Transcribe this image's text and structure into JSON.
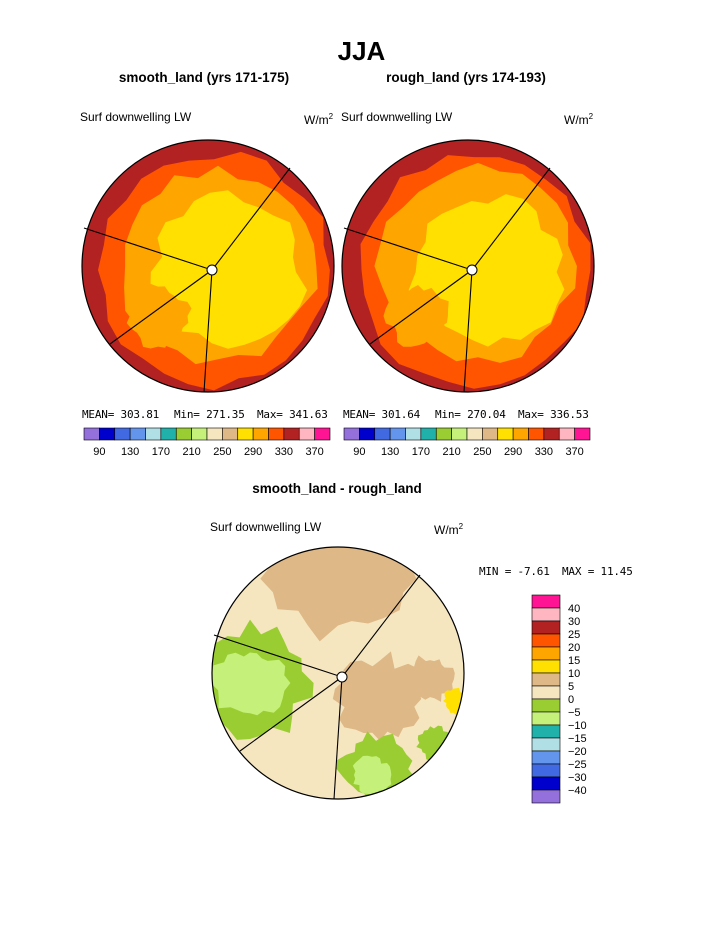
{
  "page": {
    "title": "JJA"
  },
  "colors": {
    "abs_scale": [
      "#9370DB",
      "#0000CD",
      "#4169E1",
      "#6495ED",
      "#B0E0E6",
      "#20B2AA",
      "#9ACD32",
      "#C5F07A",
      "#F5E6C0",
      "#DEB887",
      "#FFE000",
      "#FFA500",
      "#FF5500",
      "#B22222",
      "#FFB6C1",
      "#FF1493"
    ],
    "diff_scale": [
      "#9370DB",
      "#0000CD",
      "#4169E1",
      "#6495ED",
      "#B0E0E6",
      "#20B2AA",
      "#C5F07A",
      "#9ACD32",
      "#F5E6C0",
      "#DEB887",
      "#FFE000",
      "#FFA500",
      "#FF5500",
      "#B22222",
      "#FFB6C1",
      "#FF1493"
    ]
  },
  "chart_data": [
    {
      "type": "polar-contour",
      "title": "smooth_land (yrs 171-175)",
      "variable": "Surf downwelling LW",
      "units": "W/m",
      "units_sup": "2",
      "stats": {
        "mean": "MEAN= 303.81",
        "min": "Min= 271.35",
        "max": "Max= 341.63"
      },
      "colorbar_ticks": [
        "90",
        "130",
        "170",
        "210",
        "250",
        "290",
        "330",
        "370"
      ]
    },
    {
      "type": "polar-contour",
      "title": "rough_land (yrs 174-193)",
      "variable": "Surf downwelling LW",
      "units": "W/m",
      "units_sup": "2",
      "stats": {
        "mean": "MEAN= 301.64",
        "min": "Min= 270.04",
        "max": "Max= 336.53"
      },
      "colorbar_ticks": [
        "90",
        "130",
        "170",
        "210",
        "250",
        "290",
        "330",
        "370"
      ]
    },
    {
      "type": "polar-contour",
      "title": "smooth_land - rough_land",
      "variable": "Surf downwelling LW",
      "units": "W/m",
      "units_sup": "2",
      "stats": {
        "min": "MIN =  -7.61",
        "max": "MAX =  11.45"
      },
      "colorbar_ticks": [
        "40",
        "30",
        "25",
        "20",
        "15",
        "10",
        "5",
        "0",
        "−5",
        "−10",
        "−15",
        "−20",
        "−25",
        "−30",
        "−40"
      ]
    }
  ]
}
